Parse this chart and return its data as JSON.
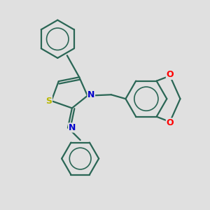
{
  "background_color": "#e0e0e0",
  "bond_color": "#2a6655",
  "s_color": "#b8b800",
  "n_color": "#0000cc",
  "o_color": "#ff0000",
  "line_width": 1.6,
  "fig_size": [
    3.0,
    3.0
  ],
  "dpi": 100,
  "xlim": [
    0,
    10
  ],
  "ylim": [
    0,
    10
  ]
}
